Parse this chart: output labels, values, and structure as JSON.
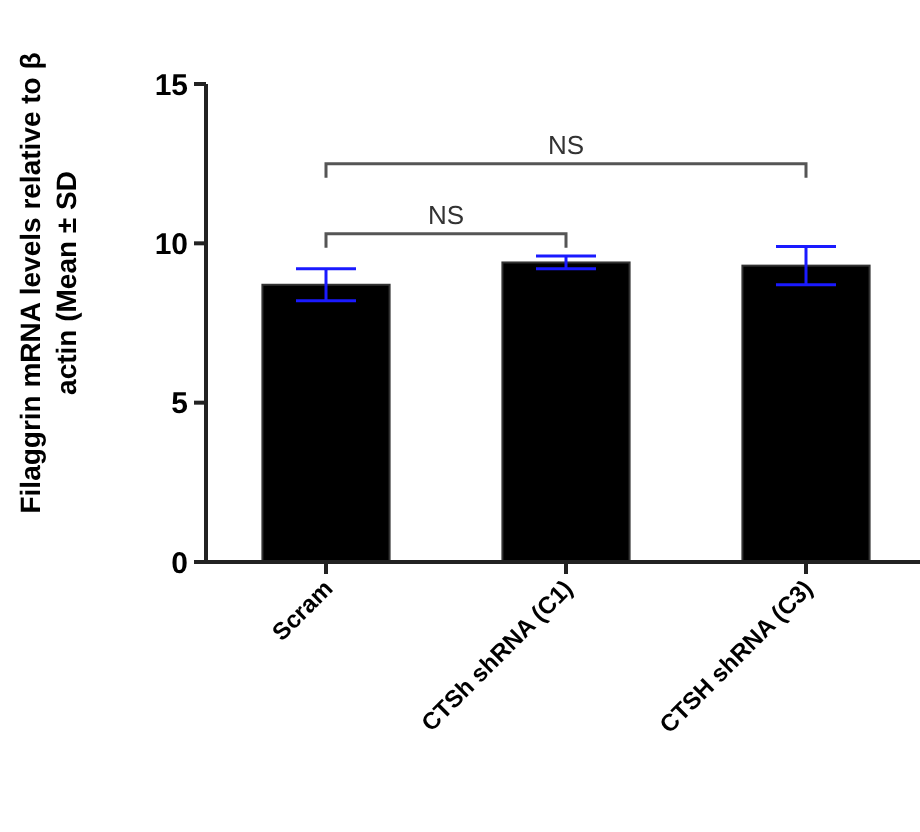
{
  "chart_data": {
    "type": "bar",
    "ylabel": "Filaggrin mRNA levels relative to β actin (Mean ± SD",
    "categories": [
      "Scram",
      "CTSh shRNA (C1)",
      "CTSH shRNA (C3)"
    ],
    "values": [
      8.7,
      9.4,
      9.3
    ],
    "color": "#000000",
    "errors": [
      0.5,
      0.2,
      0.6
    ],
    "ylim": [
      0,
      15
    ],
    "yticks": [
      0,
      5,
      10,
      15
    ],
    "grid": false,
    "annotations": [
      "NS",
      "NS"
    ]
  }
}
